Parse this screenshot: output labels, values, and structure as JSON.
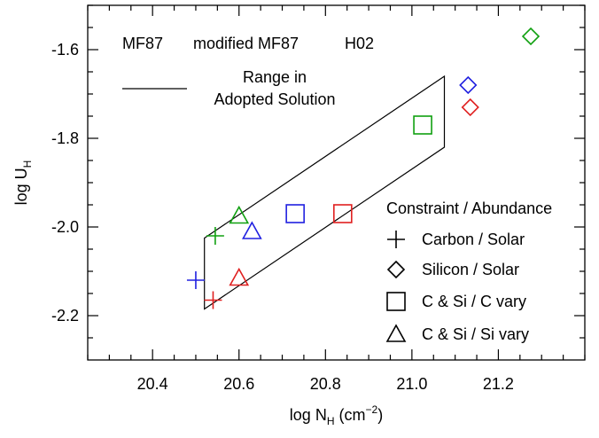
{
  "chart_data": {
    "type": "scatter",
    "xlabel": {
      "main": "log N",
      "sub": "H",
      "unit": " (cm",
      "sup": "−2",
      "close": ")"
    },
    "ylabel": {
      "main": "log U",
      "sub": "H"
    },
    "xlim": [
      20.25,
      21.4
    ],
    "ylim": [
      -2.3,
      -1.5
    ],
    "xticks": [
      20.4,
      20.6,
      20.8,
      21.0,
      21.2
    ],
    "yticks": [
      -2.2,
      -2.0,
      -1.8,
      -1.6
    ],
    "xticklabels": [
      "20.4",
      "20.6",
      "20.8",
      "21.0",
      "21.2"
    ],
    "yticklabels": [
      "-2.2",
      "-2.0",
      "-1.8",
      "-1.6"
    ],
    "colors": {
      "MF87": "#2020e0",
      "modified_MF87": "#e02020",
      "H02": "#10a010",
      "frame": "#000000"
    },
    "color_legend": [
      {
        "label": "MF87",
        "color": "#2020e0"
      },
      {
        "label": "modified MF87",
        "color": "#e02020"
      },
      {
        "label": "H02",
        "color": "#10a010"
      }
    ],
    "range_legend": {
      "line1": "Range in",
      "line2": "Adopted Solution"
    },
    "range_polygon": [
      [
        20.52,
        -2.025
      ],
      [
        21.075,
        -1.66
      ],
      [
        21.075,
        -1.82
      ],
      [
        20.52,
        -2.185
      ]
    ],
    "marker_legend": {
      "title": "Constraint / Abundance",
      "items": [
        {
          "marker": "plus",
          "label": "Carbon / Solar"
        },
        {
          "marker": "diamond",
          "label": "Silicon / Solar"
        },
        {
          "marker": "square",
          "label": "C & Si / C vary"
        },
        {
          "marker": "triangle",
          "label": "C & Si / Si vary"
        }
      ]
    },
    "points": [
      {
        "x": 20.5,
        "y": -2.12,
        "marker": "plus",
        "color": "#2020e0"
      },
      {
        "x": 20.54,
        "y": -2.165,
        "marker": "plus",
        "color": "#e02020"
      },
      {
        "x": 20.545,
        "y": -2.02,
        "marker": "plus",
        "color": "#10a010"
      },
      {
        "x": 21.13,
        "y": -1.68,
        "marker": "diamond",
        "color": "#2020e0"
      },
      {
        "x": 21.135,
        "y": -1.73,
        "marker": "diamond",
        "color": "#e02020"
      },
      {
        "x": 21.275,
        "y": -1.57,
        "marker": "diamond",
        "color": "#10a010"
      },
      {
        "x": 20.73,
        "y": -1.97,
        "marker": "square",
        "color": "#2020e0"
      },
      {
        "x": 20.84,
        "y": -1.97,
        "marker": "square",
        "color": "#e02020"
      },
      {
        "x": 21.025,
        "y": -1.77,
        "marker": "square",
        "color": "#10a010"
      },
      {
        "x": 20.63,
        "y": -2.01,
        "marker": "triangle",
        "color": "#2020e0"
      },
      {
        "x": 20.6,
        "y": -2.115,
        "marker": "triangle",
        "color": "#e02020"
      },
      {
        "x": 20.6,
        "y": -1.975,
        "marker": "triangle",
        "color": "#10a010"
      }
    ]
  }
}
